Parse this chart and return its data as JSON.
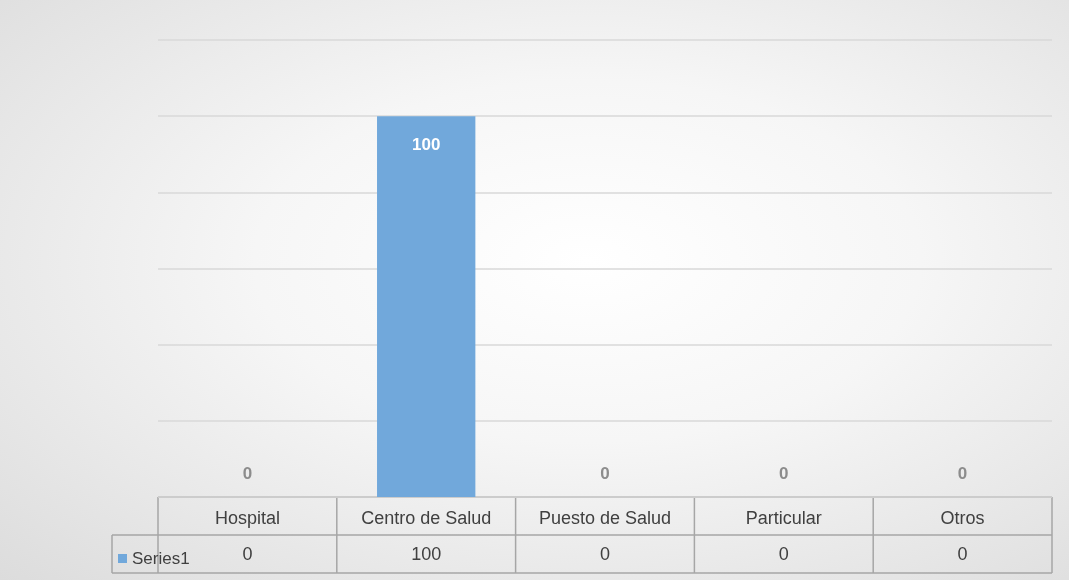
{
  "chart_data": {
    "type": "bar",
    "categories": [
      "Hospital",
      "Centro de Salud",
      "Puesto de Salud",
      "Particular",
      "Otros"
    ],
    "series": [
      {
        "name": "Series1",
        "color": "#71a8db",
        "values": [
          0,
          100,
          0,
          0,
          0
        ]
      }
    ],
    "annotations": [
      {
        "text": "0",
        "x": "Hospital",
        "y": 0
      },
      {
        "text": "100",
        "x": "Centro de Salud",
        "y": 100
      },
      {
        "text": "0",
        "x": "Puesto de Salud",
        "y": 0
      },
      {
        "text": "0",
        "x": "Particular",
        "y": 0
      },
      {
        "text": "0",
        "x": "Otros",
        "y": 0
      }
    ],
    "ylim": [
      0,
      120
    ],
    "yticks": [
      {
        "value": 0,
        "label": null
      },
      {
        "value": 20,
        "label": null
      },
      {
        "value": 40,
        "label": null
      },
      {
        "value": 60,
        "label": null
      },
      {
        "value": 80,
        "label": null
      },
      {
        "value": 100,
        "label": null
      },
      {
        "value": 120,
        "label": null
      }
    ],
    "tick_labels": "x",
    "grid": "y",
    "data_labels": true,
    "legend": "bottom left"
  }
}
